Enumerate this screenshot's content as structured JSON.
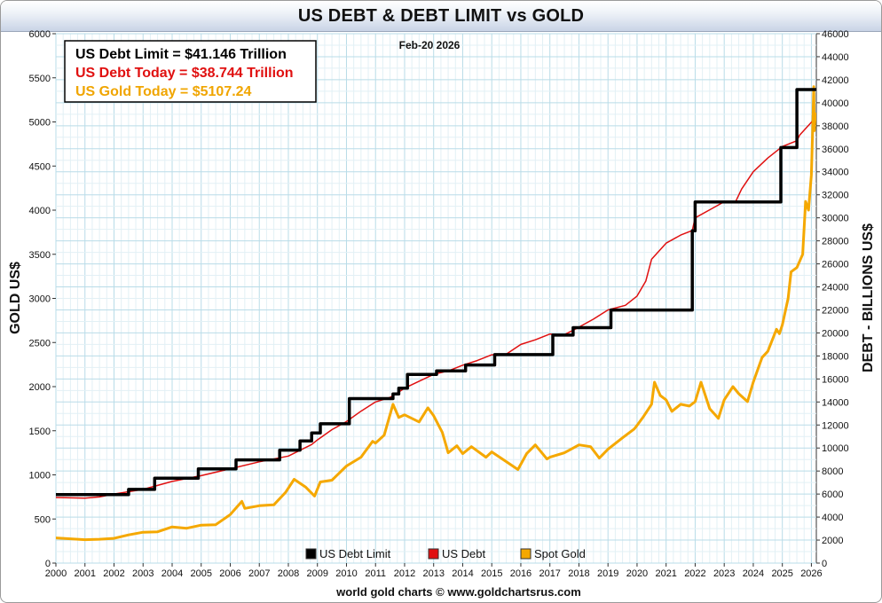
{
  "chart_data": {
    "type": "line",
    "title": "US DEBT & DEBT LIMIT vs GOLD",
    "date_label": "Feb-20  2026",
    "footer": "world gold charts © www.goldchartsrus.com",
    "ylabel_left": "GOLD US$",
    "ylabel_right": "DEBT - BILLIONS US$",
    "ylim_left": [
      0,
      6000
    ],
    "ylim_right": [
      0,
      46000
    ],
    "xlim": [
      2000,
      2026.17
    ],
    "x_ticks": [
      "2000",
      "2001",
      "2002",
      "2003",
      "2004",
      "2005",
      "2006",
      "2007",
      "2008",
      "2009",
      "2010",
      "2011",
      "2012",
      "2013",
      "2014",
      "2015",
      "2016",
      "2017",
      "2018",
      "2019",
      "2020",
      "2021",
      "2022",
      "2023",
      "2024",
      "2025",
      "2026"
    ],
    "y_ticks_left": [
      "0",
      "500",
      "1000",
      "1500",
      "2000",
      "2500",
      "3000",
      "3500",
      "4000",
      "4500",
      "5000",
      "5500",
      "6000"
    ],
    "y_ticks_right": [
      "0",
      "2000",
      "4000",
      "6000",
      "8000",
      "10000",
      "12000",
      "14000",
      "16000",
      "18000",
      "20000",
      "22000",
      "24000",
      "26000",
      "28000",
      "30000",
      "32000",
      "34000",
      "36000",
      "38000",
      "40000",
      "42000",
      "44000",
      "46000"
    ],
    "info_box": [
      {
        "label": "US Debt Limit    = $41.146 Trillion",
        "color": "#000000"
      },
      {
        "label": "US Debt Today = $38.744 Trillion",
        "color": "#e01010"
      },
      {
        "label": "US Gold Today = $5107.24",
        "color": "#f0a500"
      }
    ],
    "legend": [
      {
        "name": "US Debt Limit",
        "color": "#000000"
      },
      {
        "name": "US Debt",
        "color": "#e01010"
      },
      {
        "name": "Spot Gold",
        "color": "#f5a800"
      }
    ],
    "series": [
      {
        "name": "US Debt Limit",
        "axis": "right",
        "color": "#000000",
        "step": true,
        "points": [
          [
            2000.0,
            5950
          ],
          [
            2002.5,
            6400
          ],
          [
            2003.4,
            7384
          ],
          [
            2004.9,
            8184
          ],
          [
            2006.2,
            8965
          ],
          [
            2007.7,
            9815
          ],
          [
            2008.4,
            10615
          ],
          [
            2008.8,
            11315
          ],
          [
            2009.1,
            12104
          ],
          [
            2010.1,
            14294
          ],
          [
            2011.6,
            14694
          ],
          [
            2011.8,
            15194
          ],
          [
            2012.1,
            16394
          ],
          [
            2013.1,
            16699
          ],
          [
            2014.1,
            17212
          ],
          [
            2015.1,
            18113
          ],
          [
            2017.1,
            19808
          ],
          [
            2017.8,
            20456
          ],
          [
            2019.1,
            21988
          ],
          [
            2021.9,
            28881
          ],
          [
            2022.0,
            31381
          ],
          [
            2024.95,
            36104
          ],
          [
            2025.5,
            41146
          ],
          [
            2026.17,
            41146
          ]
        ]
      },
      {
        "name": "US Debt",
        "axis": "right",
        "color": "#e01010",
        "points": [
          [
            2000.0,
            5700
          ],
          [
            2001.0,
            5650
          ],
          [
            2001.5,
            5750
          ],
          [
            2002.0,
            6000
          ],
          [
            2003.0,
            6400
          ],
          [
            2004.0,
            7100
          ],
          [
            2005.0,
            7600
          ],
          [
            2006.0,
            8200
          ],
          [
            2007.0,
            8800
          ],
          [
            2008.0,
            9300
          ],
          [
            2008.8,
            10300
          ],
          [
            2009.0,
            10700
          ],
          [
            2009.5,
            11600
          ],
          [
            2010.0,
            12300
          ],
          [
            2010.5,
            13200
          ],
          [
            2011.0,
            14000
          ],
          [
            2011.5,
            14400
          ],
          [
            2011.7,
            14700
          ],
          [
            2012.0,
            15200
          ],
          [
            2012.5,
            15800
          ],
          [
            2013.0,
            16400
          ],
          [
            2013.5,
            16700
          ],
          [
            2014.0,
            17200
          ],
          [
            2014.5,
            17600
          ],
          [
            2015.0,
            18100
          ],
          [
            2015.5,
            18150
          ],
          [
            2016.0,
            19000
          ],
          [
            2016.5,
            19400
          ],
          [
            2017.0,
            19900
          ],
          [
            2017.5,
            19850
          ],
          [
            2018.0,
            20500
          ],
          [
            2018.5,
            21200
          ],
          [
            2019.0,
            22000
          ],
          [
            2019.6,
            22400
          ],
          [
            2020.0,
            23200
          ],
          [
            2020.3,
            24500
          ],
          [
            2020.5,
            26400
          ],
          [
            2021.0,
            27800
          ],
          [
            2021.5,
            28500
          ],
          [
            2021.9,
            28900
          ],
          [
            2022.0,
            30000
          ],
          [
            2022.5,
            30700
          ],
          [
            2023.0,
            31400
          ],
          [
            2023.4,
            31450
          ],
          [
            2023.6,
            32500
          ],
          [
            2024.0,
            34000
          ],
          [
            2024.5,
            35200
          ],
          [
            2025.0,
            36200
          ],
          [
            2025.5,
            36700
          ],
          [
            2025.6,
            37200
          ],
          [
            2026.0,
            38300
          ],
          [
            2026.14,
            38744
          ]
        ]
      },
      {
        "name": "Spot Gold",
        "axis": "left",
        "color": "#f5a800",
        "points": [
          [
            2000.0,
            285
          ],
          [
            2001.0,
            265
          ],
          [
            2001.5,
            270
          ],
          [
            2002.0,
            280
          ],
          [
            2002.5,
            320
          ],
          [
            2003.0,
            350
          ],
          [
            2003.5,
            355
          ],
          [
            2004.0,
            410
          ],
          [
            2004.5,
            395
          ],
          [
            2005.0,
            430
          ],
          [
            2005.5,
            435
          ],
          [
            2006.0,
            550
          ],
          [
            2006.4,
            700
          ],
          [
            2006.5,
            620
          ],
          [
            2007.0,
            650
          ],
          [
            2007.5,
            660
          ],
          [
            2007.9,
            800
          ],
          [
            2008.2,
            950
          ],
          [
            2008.6,
            860
          ],
          [
            2008.9,
            760
          ],
          [
            2009.1,
            920
          ],
          [
            2009.5,
            940
          ],
          [
            2010.0,
            1100
          ],
          [
            2010.5,
            1200
          ],
          [
            2010.9,
            1380
          ],
          [
            2011.0,
            1360
          ],
          [
            2011.3,
            1450
          ],
          [
            2011.6,
            1800
          ],
          [
            2011.8,
            1650
          ],
          [
            2012.0,
            1680
          ],
          [
            2012.5,
            1600
          ],
          [
            2012.8,
            1760
          ],
          [
            2013.0,
            1670
          ],
          [
            2013.3,
            1480
          ],
          [
            2013.5,
            1250
          ],
          [
            2013.8,
            1330
          ],
          [
            2014.0,
            1240
          ],
          [
            2014.3,
            1320
          ],
          [
            2014.8,
            1200
          ],
          [
            2015.0,
            1260
          ],
          [
            2015.5,
            1150
          ],
          [
            2015.9,
            1060
          ],
          [
            2016.2,
            1240
          ],
          [
            2016.5,
            1340
          ],
          [
            2016.9,
            1180
          ],
          [
            2017.0,
            1200
          ],
          [
            2017.5,
            1250
          ],
          [
            2018.0,
            1340
          ],
          [
            2018.4,
            1320
          ],
          [
            2018.7,
            1190
          ],
          [
            2019.0,
            1290
          ],
          [
            2019.5,
            1420
          ],
          [
            2019.9,
            1520
          ],
          [
            2020.0,
            1560
          ],
          [
            2020.2,
            1650
          ],
          [
            2020.5,
            1800
          ],
          [
            2020.6,
            2050
          ],
          [
            2020.8,
            1900
          ],
          [
            2021.0,
            1850
          ],
          [
            2021.2,
            1720
          ],
          [
            2021.5,
            1800
          ],
          [
            2021.8,
            1780
          ],
          [
            2022.0,
            1830
          ],
          [
            2022.2,
            2050
          ],
          [
            2022.5,
            1750
          ],
          [
            2022.8,
            1640
          ],
          [
            2023.0,
            1850
          ],
          [
            2023.3,
            2000
          ],
          [
            2023.5,
            1920
          ],
          [
            2023.8,
            1830
          ],
          [
            2024.0,
            2050
          ],
          [
            2024.3,
            2330
          ],
          [
            2024.5,
            2400
          ],
          [
            2024.8,
            2650
          ],
          [
            2024.9,
            2600
          ],
          [
            2025.0,
            2700
          ],
          [
            2025.2,
            3000
          ],
          [
            2025.3,
            3300
          ],
          [
            2025.5,
            3350
          ],
          [
            2025.7,
            3500
          ],
          [
            2025.8,
            4100
          ],
          [
            2025.9,
            4000
          ],
          [
            2026.0,
            4400
          ],
          [
            2026.05,
            5000
          ],
          [
            2026.08,
            5400
          ],
          [
            2026.1,
            4900
          ],
          [
            2026.14,
            5107
          ]
        ]
      }
    ]
  }
}
